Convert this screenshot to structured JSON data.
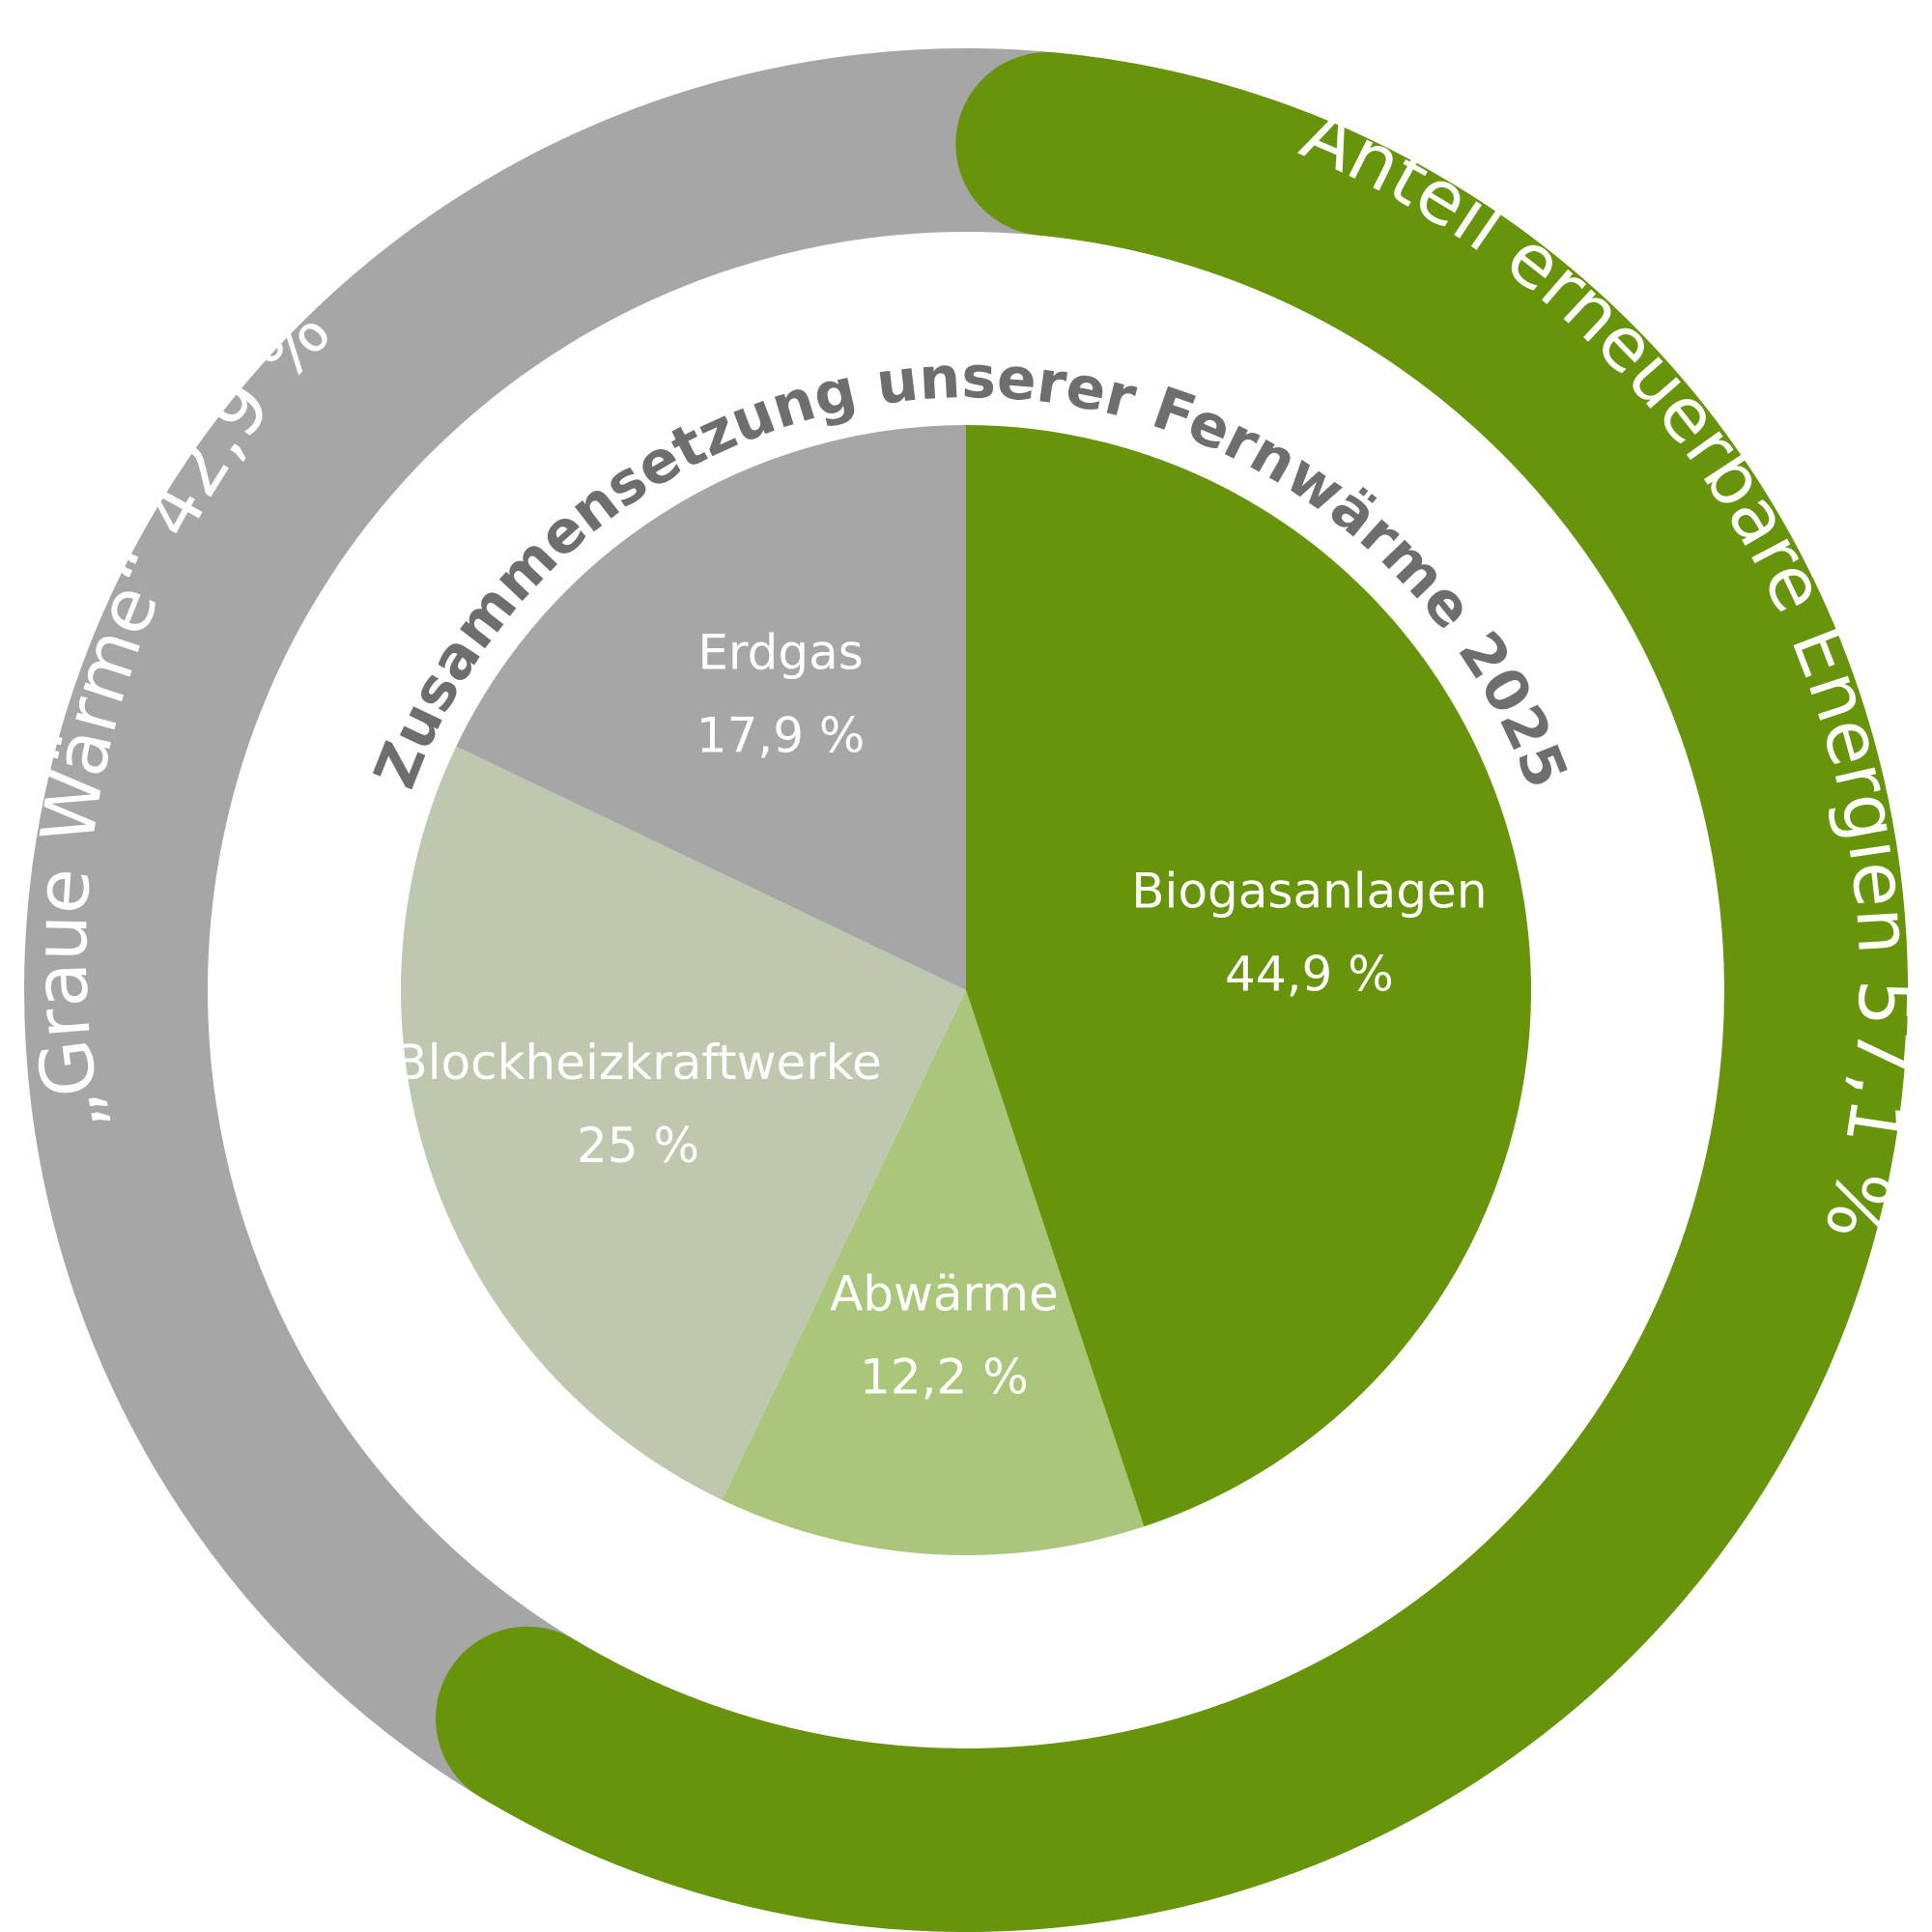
{
  "chart_data": {
    "type": "pie",
    "title": "Zusammensetzung unserer Fernwärme 2025",
    "start": "top",
    "direction": "clockwise",
    "slices": [
      {
        "label": "Biogasanlagen",
        "value": 44.9,
        "value_label": "44,9 %",
        "color": "#67940a"
      },
      {
        "label": "Abwärme",
        "value": 12.2,
        "value_label": "12,2 %",
        "color": "#aac67a"
      },
      {
        "label": "Blockheizkraftwerke",
        "value": 25,
        "value_label": "25 %",
        "color": "#bec8ae"
      },
      {
        "label": "Erdgas",
        "value": 17.9,
        "value_label": "17,9 %",
        "color": "#a6a6a6"
      }
    ],
    "outer_ring": [
      {
        "label": "Anteil erneuerbare Energien 57,1 %",
        "value": 57.1,
        "color": "#67940a"
      },
      {
        "label": "„Graue Wärme“ 42,9 %",
        "value": 42.9,
        "color": "#a6a6a6"
      }
    ]
  }
}
